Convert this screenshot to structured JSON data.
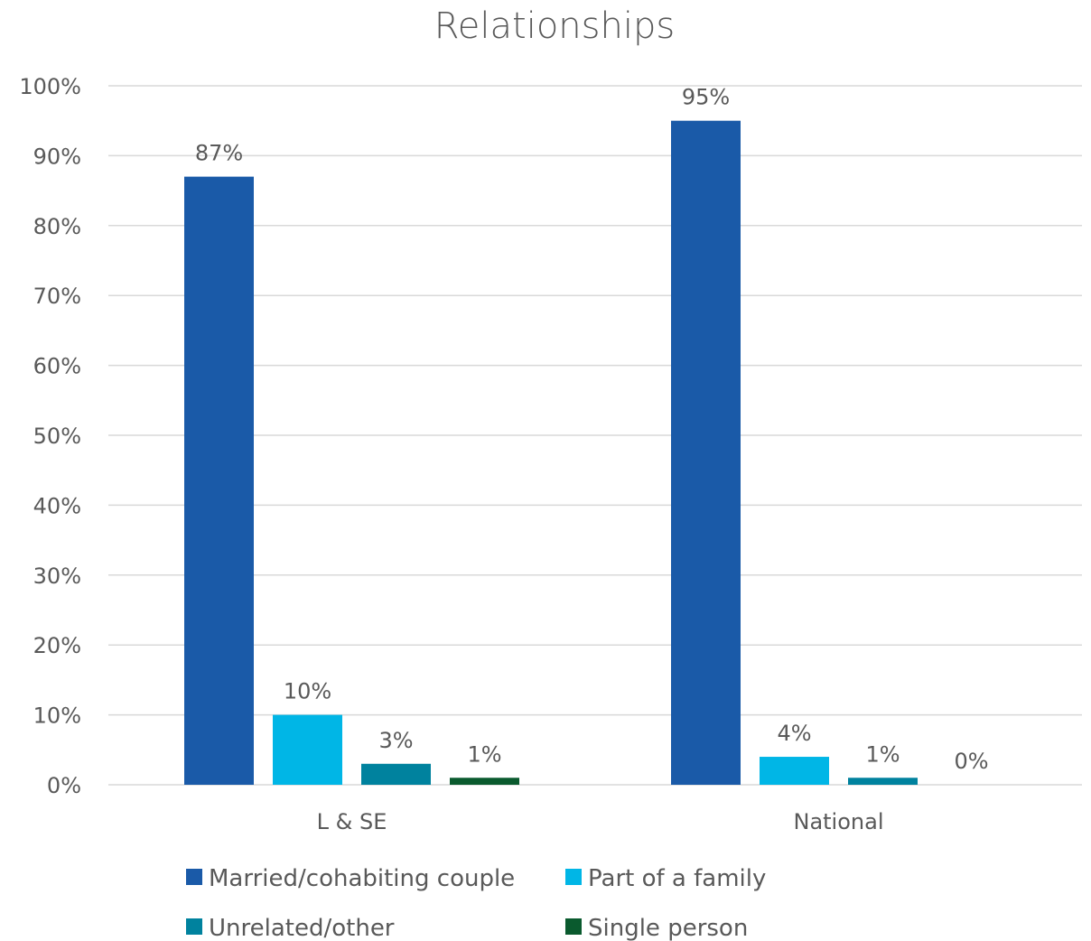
{
  "chart_data": {
    "type": "bar",
    "title": "Relationships",
    "categories": [
      "L & SE",
      "National"
    ],
    "series": [
      {
        "name": "Married/cohabiting couple",
        "values": [
          87,
          95
        ],
        "labels": [
          "87%",
          "95%"
        ],
        "color": "#1a5aa8"
      },
      {
        "name": "Part of a family",
        "values": [
          10,
          4
        ],
        "labels": [
          "10%",
          "4%"
        ],
        "color": "#00b6e6"
      },
      {
        "name": "Unrelated/other",
        "values": [
          3,
          1
        ],
        "labels": [
          "3%",
          "1%"
        ],
        "color": "#00829e"
      },
      {
        "name": "Single person",
        "values": [
          1,
          0
        ],
        "labels": [
          "1%",
          "0%"
        ],
        "color": "#0a5a2e"
      }
    ],
    "ylim": [
      0,
      100
    ],
    "yticks": [
      "0%",
      "10%",
      "20%",
      "30%",
      "40%",
      "50%",
      "60%",
      "70%",
      "80%",
      "90%",
      "100%"
    ],
    "xlabel": "",
    "ylabel": "",
    "grid": true,
    "legend_position": "bottom"
  }
}
